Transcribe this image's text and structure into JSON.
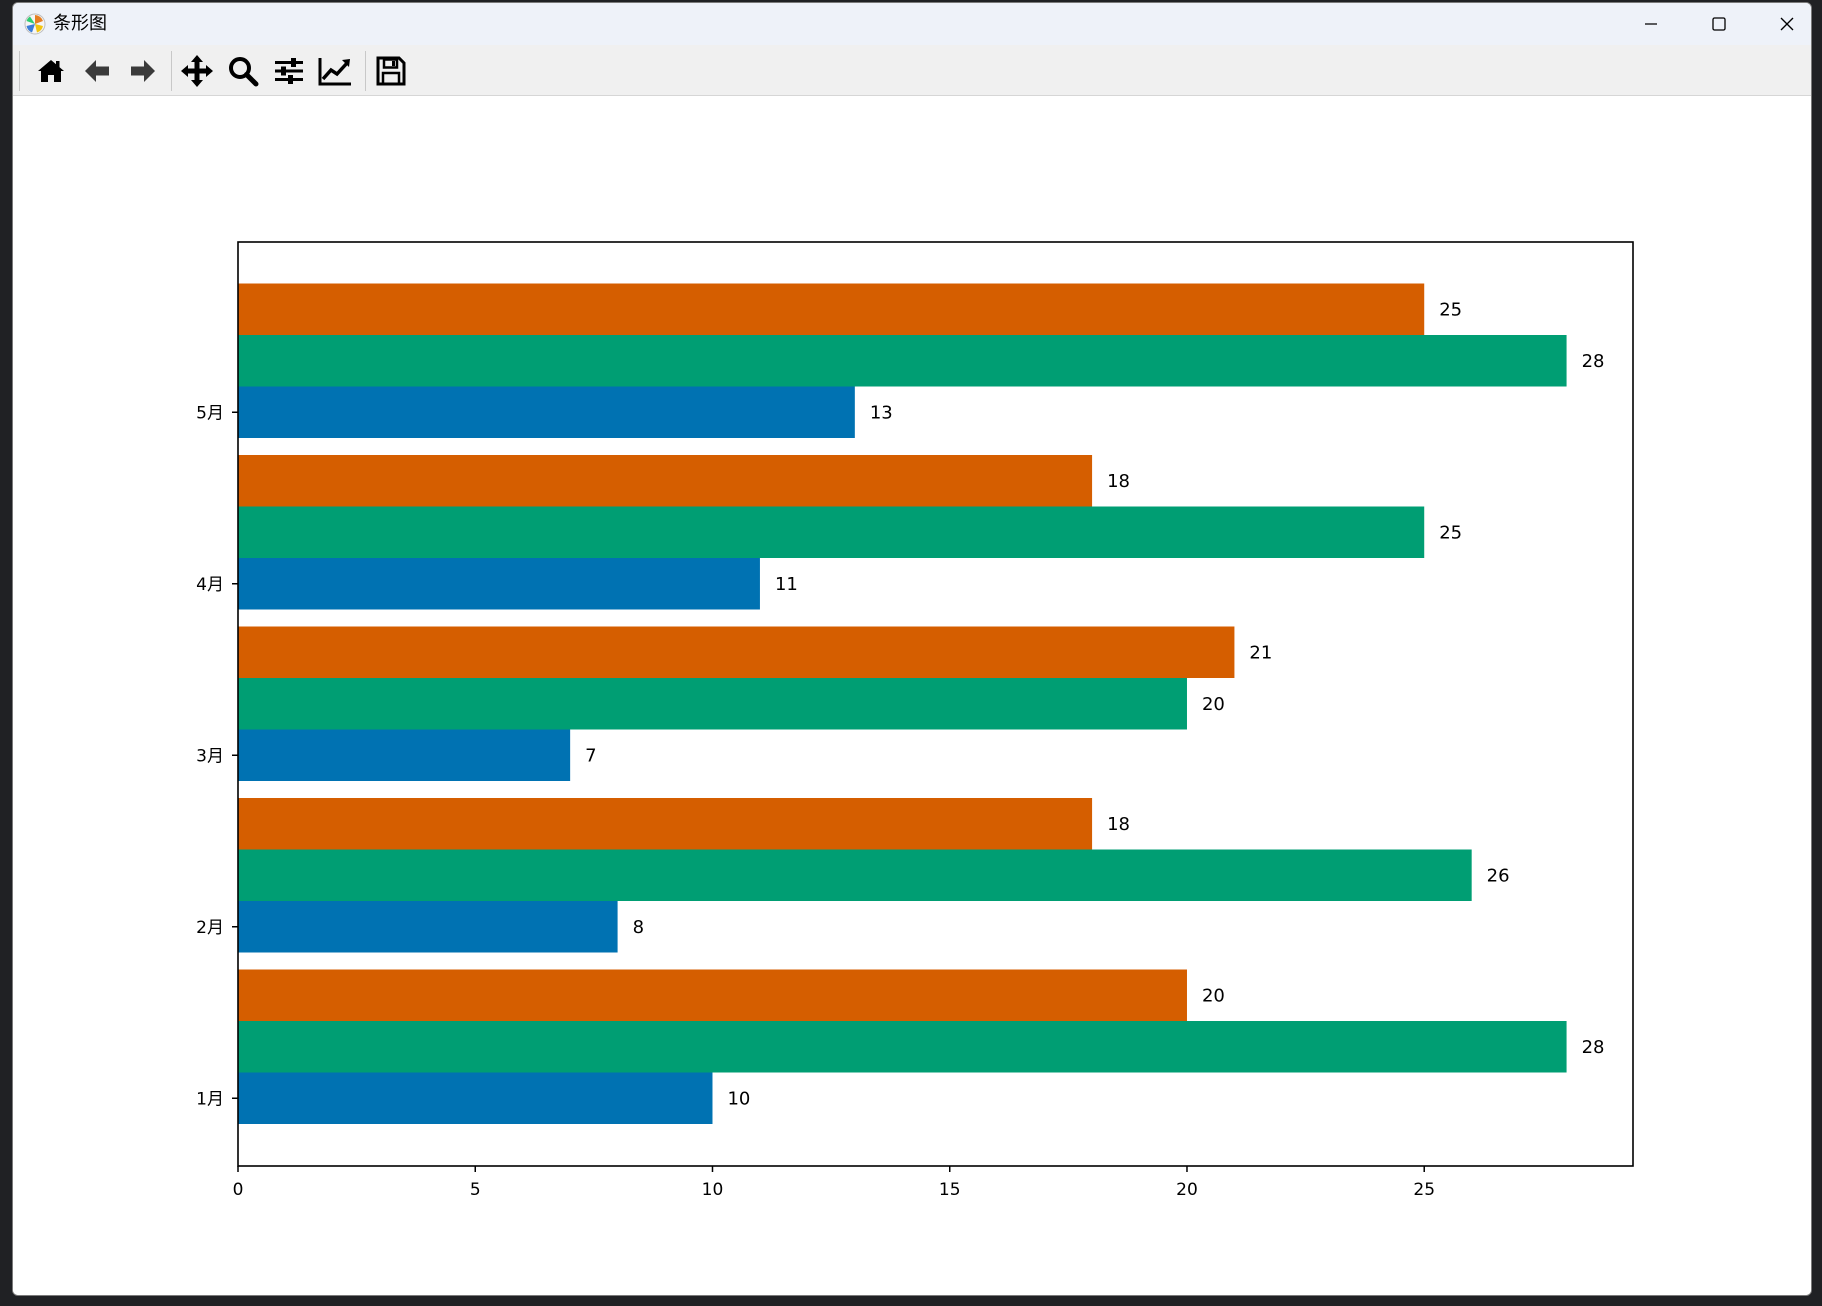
{
  "window": {
    "title": "条形图"
  },
  "toolbar": {
    "buttons": [
      {
        "name": "home-icon"
      },
      {
        "name": "back-icon"
      },
      {
        "name": "forward-icon"
      },
      {
        "name": "pan-icon"
      },
      {
        "name": "zoom-icon"
      },
      {
        "name": "configure-subplots-icon"
      },
      {
        "name": "edit-axis-icon"
      },
      {
        "name": "save-icon"
      }
    ]
  },
  "chart_data": {
    "type": "bar",
    "orientation": "horizontal",
    "title": "",
    "xlabel": "",
    "ylabel": "",
    "categories": [
      "1月",
      "2月",
      "3月",
      "4月",
      "5月"
    ],
    "series": [
      {
        "values": [
          10,
          8,
          7,
          11,
          13
        ],
        "color": "#0072b2"
      },
      {
        "values": [
          28,
          26,
          20,
          25,
          28
        ],
        "color": "#009e73"
      },
      {
        "values": [
          20,
          18,
          21,
          18,
          25
        ],
        "color": "#d55e00"
      }
    ],
    "xlim": [
      0,
      29.4
    ],
    "xticks": [
      0,
      5,
      10,
      15,
      20,
      25
    ],
    "grid": false,
    "legend": "none"
  }
}
